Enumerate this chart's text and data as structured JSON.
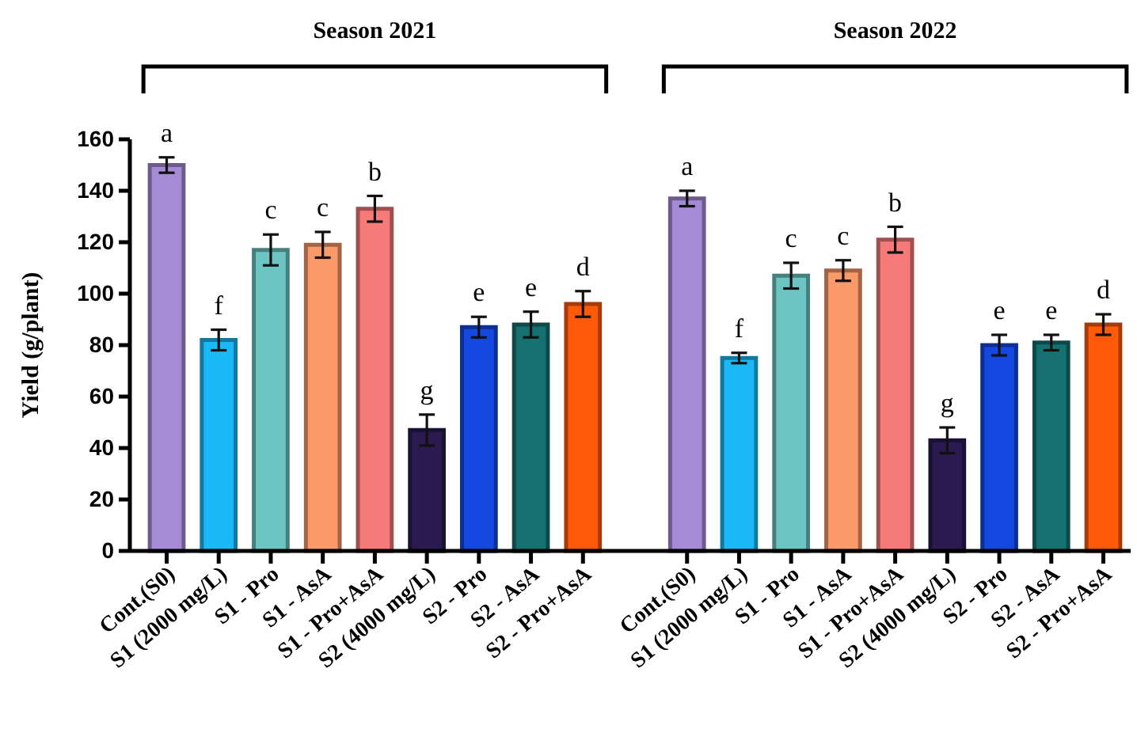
{
  "chart_data": {
    "type": "bar",
    "ylabel": "Yield (g/plant)",
    "annotations": [
      "Season 2021",
      "Season 2022"
    ],
    "categories": [
      "Cont.(S0)",
      "S1 (2000 mg/L)",
      "S1 - Pro",
      "S1 - AsA",
      "S1 - Pro+AsA",
      "S2 (4000 mg/L)",
      "S2 - Pro",
      "S2 - AsA",
      "S2 - Pro+AsA",
      null,
      "Cont.(S0)",
      "S1 (2000 mg/L)",
      "S1 - Pro",
      "S1 - AsA",
      "S1 - Pro+AsA",
      "S2 (4000 mg/L)",
      "S2 - Pro",
      "S2 - AsA",
      "S2 - Pro+AsA"
    ],
    "values": [
      150,
      82,
      117,
      119,
      133,
      47,
      87,
      88,
      96,
      null,
      137,
      75,
      107,
      109,
      121,
      43,
      80,
      81,
      88
    ],
    "errors": [
      3,
      4,
      6,
      5,
      5,
      6,
      4,
      5,
      5,
      null,
      3,
      2,
      5,
      4,
      5,
      5,
      4,
      3,
      4
    ],
    "value_labels": [
      "a",
      "f",
      "c",
      "c",
      "b",
      "g",
      "e",
      "e",
      "d",
      null,
      "a",
      "f",
      "c",
      "c",
      "b",
      "g",
      "e",
      "e",
      "d"
    ],
    "colors": [
      "#a58bd6",
      "#1ab8f5",
      "#6cc5c2",
      "#fa9a6a",
      "#f77a7a",
      "#2a1a50",
      "#1448e0",
      "#157070",
      "#ff5a0a",
      null,
      "#a58bd6",
      "#1ab8f5",
      "#6cc5c2",
      "#fa9a6a",
      "#f77a7a",
      "#2a1a50",
      "#1448e0",
      "#157070",
      "#ff5a0a"
    ],
    "ylim": [
      0,
      160
    ],
    "yticks": [
      0,
      20,
      40,
      60,
      80,
      100,
      120,
      140,
      160
    ],
    "grid": false
  }
}
